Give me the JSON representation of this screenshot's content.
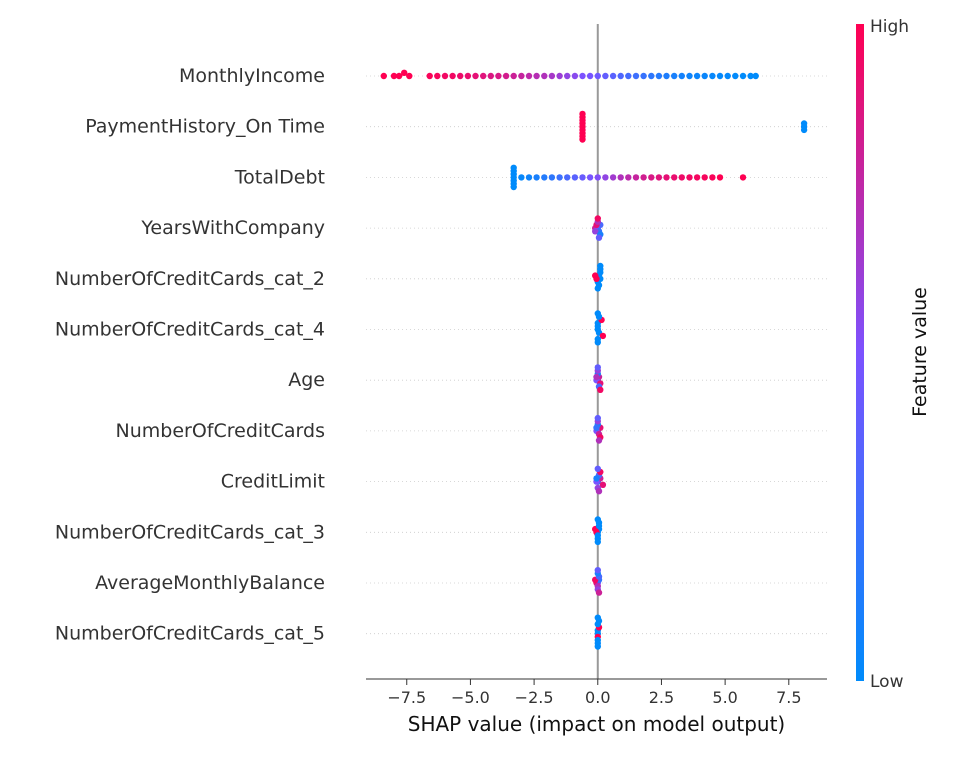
{
  "chart_data": {
    "type": "scatter",
    "subtype": "shap-beeswarm",
    "xlabel": "SHAP value (impact on model output)",
    "xlim": [
      -9.1,
      9.0
    ],
    "xticks": [
      -7.5,
      -5.0,
      -2.5,
      0.0,
      2.5,
      5.0,
      7.5
    ],
    "xtick_labels": [
      "−7.5",
      "−5.0",
      "−2.5",
      "0.0",
      "2.5",
      "5.0",
      "7.5"
    ],
    "zero_line": 0,
    "grid": "horizontal dotted per feature",
    "colorbar": {
      "label": "Feature value",
      "high_label": "High",
      "low_label": "Low",
      "low_color": "#008bfb",
      "mid_color": "#7c52ff",
      "high_color": "#ff0052"
    },
    "features": [
      {
        "name": "MonthlyIncome",
        "points": [
          {
            "x": -8.4,
            "v": 1.0
          },
          {
            "x": -8.0,
            "v": 1.0
          },
          {
            "x": -7.8,
            "v": 1.0
          },
          {
            "x": -7.6,
            "v": 1.0
          },
          {
            "x": -7.4,
            "v": 1.0
          },
          {
            "x": -6.6,
            "v": 0.98
          },
          {
            "x": -6.3,
            "v": 0.97
          },
          {
            "x": -6.0,
            "v": 0.95
          },
          {
            "x": -5.7,
            "v": 0.95
          },
          {
            "x": -5.4,
            "v": 0.93
          },
          {
            "x": -5.1,
            "v": 0.92
          },
          {
            "x": -4.8,
            "v": 0.9
          },
          {
            "x": -4.5,
            "v": 0.88
          },
          {
            "x": -4.2,
            "v": 0.86
          },
          {
            "x": -3.9,
            "v": 0.85
          },
          {
            "x": -3.6,
            "v": 0.83
          },
          {
            "x": -3.3,
            "v": 0.8
          },
          {
            "x": -3.0,
            "v": 0.78
          },
          {
            "x": -2.7,
            "v": 0.75
          },
          {
            "x": -2.4,
            "v": 0.72
          },
          {
            "x": -2.1,
            "v": 0.7
          },
          {
            "x": -1.8,
            "v": 0.66
          },
          {
            "x": -1.5,
            "v": 0.62
          },
          {
            "x": -1.2,
            "v": 0.58
          },
          {
            "x": -0.9,
            "v": 0.55
          },
          {
            "x": -0.6,
            "v": 0.5
          },
          {
            "x": -0.3,
            "v": 0.48
          },
          {
            "x": 0.0,
            "v": 0.45
          },
          {
            "x": 0.3,
            "v": 0.4
          },
          {
            "x": 0.6,
            "v": 0.36
          },
          {
            "x": 0.9,
            "v": 0.32
          },
          {
            "x": 1.2,
            "v": 0.28
          },
          {
            "x": 1.5,
            "v": 0.25
          },
          {
            "x": 1.8,
            "v": 0.22
          },
          {
            "x": 2.1,
            "v": 0.18
          },
          {
            "x": 2.4,
            "v": 0.15
          },
          {
            "x": 2.7,
            "v": 0.12
          },
          {
            "x": 3.0,
            "v": 0.1
          },
          {
            "x": 3.3,
            "v": 0.08
          },
          {
            "x": 3.6,
            "v": 0.06
          },
          {
            "x": 3.9,
            "v": 0.05
          },
          {
            "x": 4.2,
            "v": 0.04
          },
          {
            "x": 4.5,
            "v": 0.03
          },
          {
            "x": 4.8,
            "v": 0.02
          },
          {
            "x": 5.1,
            "v": 0.02
          },
          {
            "x": 5.4,
            "v": 0.01
          },
          {
            "x": 5.7,
            "v": 0.0
          },
          {
            "x": 6.0,
            "v": 0.0
          },
          {
            "x": 6.2,
            "v": 0.0
          }
        ]
      },
      {
        "name": "PaymentHistory_On Time",
        "points": [
          {
            "x": -0.6,
            "v": 1.0
          },
          {
            "x": -0.6,
            "v": 1.0
          },
          {
            "x": -0.6,
            "v": 1.0
          },
          {
            "x": -0.6,
            "v": 1.0
          },
          {
            "x": -0.6,
            "v": 1.0
          },
          {
            "x": -0.6,
            "v": 1.0
          },
          {
            "x": -0.6,
            "v": 1.0
          },
          {
            "x": -0.6,
            "v": 1.0
          },
          {
            "x": -0.6,
            "v": 1.0
          },
          {
            "x": 8.1,
            "v": 0.0
          },
          {
            "x": 8.1,
            "v": 0.0
          },
          {
            "x": 8.1,
            "v": 0.0
          }
        ]
      },
      {
        "name": "TotalDebt",
        "points": [
          {
            "x": -3.3,
            "v": 0.0
          },
          {
            "x": -3.3,
            "v": 0.0
          },
          {
            "x": -3.3,
            "v": 0.0
          },
          {
            "x": -3.3,
            "v": 0.0
          },
          {
            "x": -3.3,
            "v": 0.0
          },
          {
            "x": -3.3,
            "v": 0.0
          },
          {
            "x": -3.3,
            "v": 0.0
          },
          {
            "x": -3.0,
            "v": 0.03
          },
          {
            "x": -2.7,
            "v": 0.06
          },
          {
            "x": -2.4,
            "v": 0.1
          },
          {
            "x": -2.1,
            "v": 0.14
          },
          {
            "x": -1.8,
            "v": 0.18
          },
          {
            "x": -1.5,
            "v": 0.24
          },
          {
            "x": -1.2,
            "v": 0.3
          },
          {
            "x": -0.9,
            "v": 0.36
          },
          {
            "x": -0.6,
            "v": 0.42
          },
          {
            "x": -0.3,
            "v": 0.48
          },
          {
            "x": 0.0,
            "v": 0.52
          },
          {
            "x": 0.3,
            "v": 0.58
          },
          {
            "x": 0.6,
            "v": 0.64
          },
          {
            "x": 0.9,
            "v": 0.7
          },
          {
            "x": 1.2,
            "v": 0.74
          },
          {
            "x": 1.5,
            "v": 0.78
          },
          {
            "x": 1.8,
            "v": 0.82
          },
          {
            "x": 2.1,
            "v": 0.85
          },
          {
            "x": 2.4,
            "v": 0.88
          },
          {
            "x": 2.7,
            "v": 0.9
          },
          {
            "x": 3.0,
            "v": 0.92
          },
          {
            "x": 3.3,
            "v": 0.94
          },
          {
            "x": 3.6,
            "v": 0.95
          },
          {
            "x": 3.9,
            "v": 0.96
          },
          {
            "x": 4.2,
            "v": 0.97
          },
          {
            "x": 4.5,
            "v": 0.98
          },
          {
            "x": 4.8,
            "v": 1.0
          },
          {
            "x": 5.7,
            "v": 1.0
          }
        ]
      },
      {
        "name": "YearsWithCompany",
        "points": [
          {
            "x": -0.1,
            "v": 0.8
          },
          {
            "x": 0.0,
            "v": 0.5
          },
          {
            "x": 0.1,
            "v": 0.3
          },
          {
            "x": -0.05,
            "v": 0.9
          },
          {
            "x": 0.05,
            "v": 0.2
          },
          {
            "x": 0.0,
            "v": 0.7
          },
          {
            "x": -0.1,
            "v": 0.6
          },
          {
            "x": 0.1,
            "v": 0.1
          },
          {
            "x": 0.0,
            "v": 0.95
          },
          {
            "x": 0.05,
            "v": 0.4
          }
        ]
      },
      {
        "name": "NumberOfCreditCards_cat_2",
        "points": [
          {
            "x": 0.1,
            "v": 0.0
          },
          {
            "x": 0.05,
            "v": 0.0
          },
          {
            "x": 0.0,
            "v": 0.0
          },
          {
            "x": 0.1,
            "v": 0.0
          },
          {
            "x": -0.05,
            "v": 1.0
          },
          {
            "x": -0.1,
            "v": 1.0
          },
          {
            "x": 0.05,
            "v": 0.0
          },
          {
            "x": 0.1,
            "v": 0.0
          },
          {
            "x": 0.0,
            "v": 0.0
          },
          {
            "x": 0.1,
            "v": 0.0
          }
        ]
      },
      {
        "name": "NumberOfCreditCards_cat_4",
        "points": [
          {
            "x": 0.0,
            "v": 0.0
          },
          {
            "x": 0.0,
            "v": 0.0
          },
          {
            "x": 0.05,
            "v": 0.0
          },
          {
            "x": 0.0,
            "v": 0.0
          },
          {
            "x": 0.2,
            "v": 1.0
          },
          {
            "x": 0.15,
            "v": 1.0
          },
          {
            "x": 0.0,
            "v": 0.0
          },
          {
            "x": 0.05,
            "v": 0.0
          },
          {
            "x": 0.0,
            "v": 0.0
          },
          {
            "x": 0.0,
            "v": 0.0
          }
        ]
      },
      {
        "name": "Age",
        "points": [
          {
            "x": 0.0,
            "v": 0.2
          },
          {
            "x": 0.05,
            "v": 0.8
          },
          {
            "x": -0.05,
            "v": 0.5
          },
          {
            "x": 0.1,
            "v": 0.9
          },
          {
            "x": 0.0,
            "v": 0.1
          },
          {
            "x": -0.05,
            "v": 0.7
          },
          {
            "x": 0.05,
            "v": 0.3
          },
          {
            "x": 0.0,
            "v": 0.6
          },
          {
            "x": 0.1,
            "v": 0.95
          },
          {
            "x": 0.0,
            "v": 0.4
          }
        ]
      },
      {
        "name": "NumberOfCreditCards",
        "points": [
          {
            "x": 0.0,
            "v": 0.3
          },
          {
            "x": 0.1,
            "v": 0.9
          },
          {
            "x": -0.05,
            "v": 0.5
          },
          {
            "x": 0.05,
            "v": 0.8
          },
          {
            "x": 0.0,
            "v": 0.1
          },
          {
            "x": 0.1,
            "v": 0.95
          },
          {
            "x": -0.05,
            "v": 0.2
          },
          {
            "x": 0.0,
            "v": 0.6
          },
          {
            "x": 0.05,
            "v": 0.7
          },
          {
            "x": 0.0,
            "v": 0.4
          }
        ]
      },
      {
        "name": "CreditLimit",
        "points": [
          {
            "x": 0.0,
            "v": 0.2
          },
          {
            "x": 0.1,
            "v": 0.8
          },
          {
            "x": 0.2,
            "v": 0.9
          },
          {
            "x": -0.05,
            "v": 0.5
          },
          {
            "x": 0.05,
            "v": 0.3
          },
          {
            "x": 0.0,
            "v": 0.6
          },
          {
            "x": 0.1,
            "v": 0.95
          },
          {
            "x": -0.05,
            "v": 0.1
          },
          {
            "x": 0.05,
            "v": 0.7
          },
          {
            "x": 0.0,
            "v": 0.4
          }
        ]
      },
      {
        "name": "NumberOfCreditCards_cat_3",
        "points": [
          {
            "x": 0.0,
            "v": 0.0
          },
          {
            "x": 0.05,
            "v": 0.0
          },
          {
            "x": -0.05,
            "v": 1.0
          },
          {
            "x": -0.1,
            "v": 1.0
          },
          {
            "x": 0.0,
            "v": 0.0
          },
          {
            "x": 0.05,
            "v": 0.0
          },
          {
            "x": 0.0,
            "v": 0.0
          },
          {
            "x": 0.05,
            "v": 0.0
          },
          {
            "x": 0.0,
            "v": 0.0
          },
          {
            "x": 0.0,
            "v": 0.0
          }
        ]
      },
      {
        "name": "AverageMonthlyBalance",
        "points": [
          {
            "x": 0.0,
            "v": 0.5
          },
          {
            "x": -0.05,
            "v": 0.9
          },
          {
            "x": 0.05,
            "v": 0.2
          },
          {
            "x": 0.0,
            "v": 0.7
          },
          {
            "x": -0.1,
            "v": 0.95
          },
          {
            "x": 0.05,
            "v": 0.3
          },
          {
            "x": 0.0,
            "v": 0.6
          },
          {
            "x": 0.0,
            "v": 0.1
          },
          {
            "x": 0.05,
            "v": 0.8
          },
          {
            "x": 0.0,
            "v": 0.4
          }
        ]
      },
      {
        "name": "NumberOfCreditCards_cat_5",
        "points": [
          {
            "x": 0.0,
            "v": 0.0
          },
          {
            "x": 0.0,
            "v": 0.0
          },
          {
            "x": 0.0,
            "v": 1.0
          },
          {
            "x": 0.05,
            "v": 1.0
          },
          {
            "x": 0.0,
            "v": 0.0
          },
          {
            "x": 0.0,
            "v": 0.0
          },
          {
            "x": 0.0,
            "v": 0.0
          },
          {
            "x": 0.05,
            "v": 0.0
          },
          {
            "x": 0.0,
            "v": 0.0
          },
          {
            "x": 0.0,
            "v": 0.0
          }
        ]
      }
    ]
  }
}
